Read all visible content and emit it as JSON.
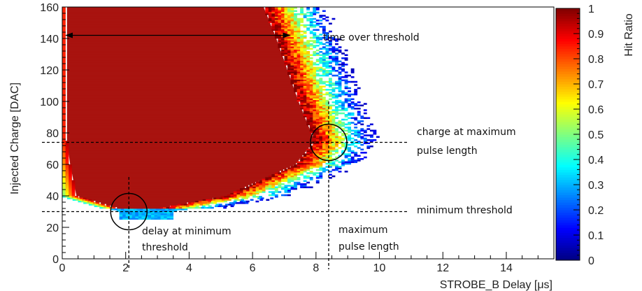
{
  "chart_data": {
    "type": "heatmap",
    "title": "",
    "xlabel": "STROBE_B Delay [μs]",
    "ylabel": "Injected Charge [DAC]",
    "zlabel": "Hit Ratio",
    "xlim": [
      0,
      15.5
    ],
    "ylim": [
      0,
      160
    ],
    "zlim": [
      0,
      1
    ],
    "x_ticks": [
      0,
      2,
      4,
      6,
      8,
      10,
      12,
      14
    ],
    "y_ticks": [
      0,
      20,
      40,
      60,
      80,
      100,
      120,
      140,
      160
    ],
    "z_ticks": [
      0,
      0.1,
      0.2,
      0.3,
      0.4,
      0.5,
      0.6,
      0.7,
      0.8,
      0.9,
      1
    ],
    "colormap": "jet",
    "region_description": [
      {
        "charge": 30,
        "delay_start": 2.0,
        "delay_end": 2.9
      },
      {
        "charge": 40,
        "delay_start": 0.3,
        "delay_end": 5.6
      },
      {
        "charge": 60,
        "delay_start": 0.1,
        "delay_end": 7.8
      },
      {
        "charge": 75,
        "delay_start": 0.0,
        "delay_end": 8.4
      },
      {
        "charge": 100,
        "delay_start": 0.0,
        "delay_end": 7.9
      },
      {
        "charge": 140,
        "delay_start": 0.0,
        "delay_end": 7.2
      },
      {
        "charge": 160,
        "delay_start": 0.0,
        "delay_end": 6.8
      }
    ],
    "guide_lines": {
      "charge_at_max_pulse": 74,
      "minimum_threshold": 30,
      "delay_at_min_threshold": 2.1,
      "max_pulse_delay": 8.4,
      "time_over_threshold": {
        "charge": 142,
        "from": 0.0,
        "to": 7.2
      }
    },
    "annotations": {
      "time_over_threshold": "time over threshold",
      "charge_at_max_line1": "charge at maximum",
      "charge_at_max_line2": "pulse length",
      "minimum_threshold": "minimum threshold",
      "delay_at_min_line1": "delay at minimum",
      "delay_at_min_line2": "threshold",
      "max_pulse_line1": "maximum",
      "max_pulse_line2": "pulse length"
    }
  },
  "colors": {
    "saturated": "#a8130f",
    "frame": "#000000"
  }
}
